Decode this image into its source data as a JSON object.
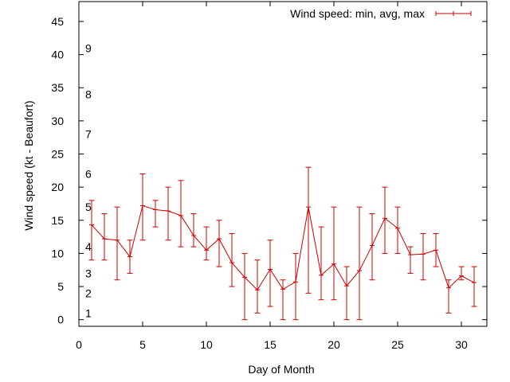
{
  "chart_data": {
    "type": "line",
    "error_bars": true,
    "xlabel": "Day of Month",
    "ylabel": "Wind speed (kt - Beaufort)",
    "xlim": [
      0,
      32
    ],
    "ylim": [
      -1,
      48
    ],
    "xticks": [
      0,
      5,
      10,
      15,
      20,
      25,
      30
    ],
    "yticks": [
      0,
      5,
      10,
      15,
      20,
      25,
      30,
      35,
      40,
      45
    ],
    "grid": false,
    "legend_position": "top-right",
    "series_color": "#cc0000",
    "beaufort_scale": [
      {
        "label": "1",
        "y": 1
      },
      {
        "label": "2",
        "y": 4
      },
      {
        "label": "3",
        "y": 7
      },
      {
        "label": "4",
        "y": 11
      },
      {
        "label": "5",
        "y": 17
      },
      {
        "label": "6",
        "y": 22
      },
      {
        "label": "7",
        "y": 28
      },
      {
        "label": "8",
        "y": 34
      },
      {
        "label": "9",
        "y": 41
      }
    ],
    "series": [
      {
        "name": "Wind speed: min, avg, max",
        "x": [
          1,
          2,
          3,
          4,
          5,
          6,
          7,
          8,
          9,
          10,
          11,
          12,
          13,
          14,
          15,
          16,
          17,
          18,
          19,
          20,
          21,
          22,
          23,
          24,
          25,
          26,
          27,
          28,
          29,
          30,
          31
        ],
        "avg": [
          14.3,
          12.2,
          12.0,
          9.5,
          17.2,
          16.6,
          16.4,
          15.7,
          12.7,
          10.5,
          12.2,
          8.6,
          6.4,
          4.5,
          7.6,
          4.6,
          5.7,
          17.0,
          6.7,
          8.4,
          5.1,
          7.4,
          11.2,
          15.3,
          13.8,
          9.8,
          9.9,
          10.5,
          4.8,
          6.6,
          5.6
        ],
        "min": [
          9,
          9,
          6,
          7,
          12,
          14,
          12,
          11,
          11,
          9,
          8,
          5,
          0,
          1,
          2,
          0,
          0,
          4,
          3,
          3,
          0,
          0,
          6,
          10,
          10,
          7,
          6,
          8,
          1,
          6,
          2
        ],
        "max": [
          18,
          16,
          17,
          12,
          22,
          18,
          20,
          21,
          16,
          14,
          15,
          13,
          10,
          9,
          12,
          6,
          10,
          23,
          14,
          17,
          8,
          17,
          16,
          20,
          17,
          11,
          13,
          13,
          6,
          8,
          8
        ]
      }
    ]
  }
}
